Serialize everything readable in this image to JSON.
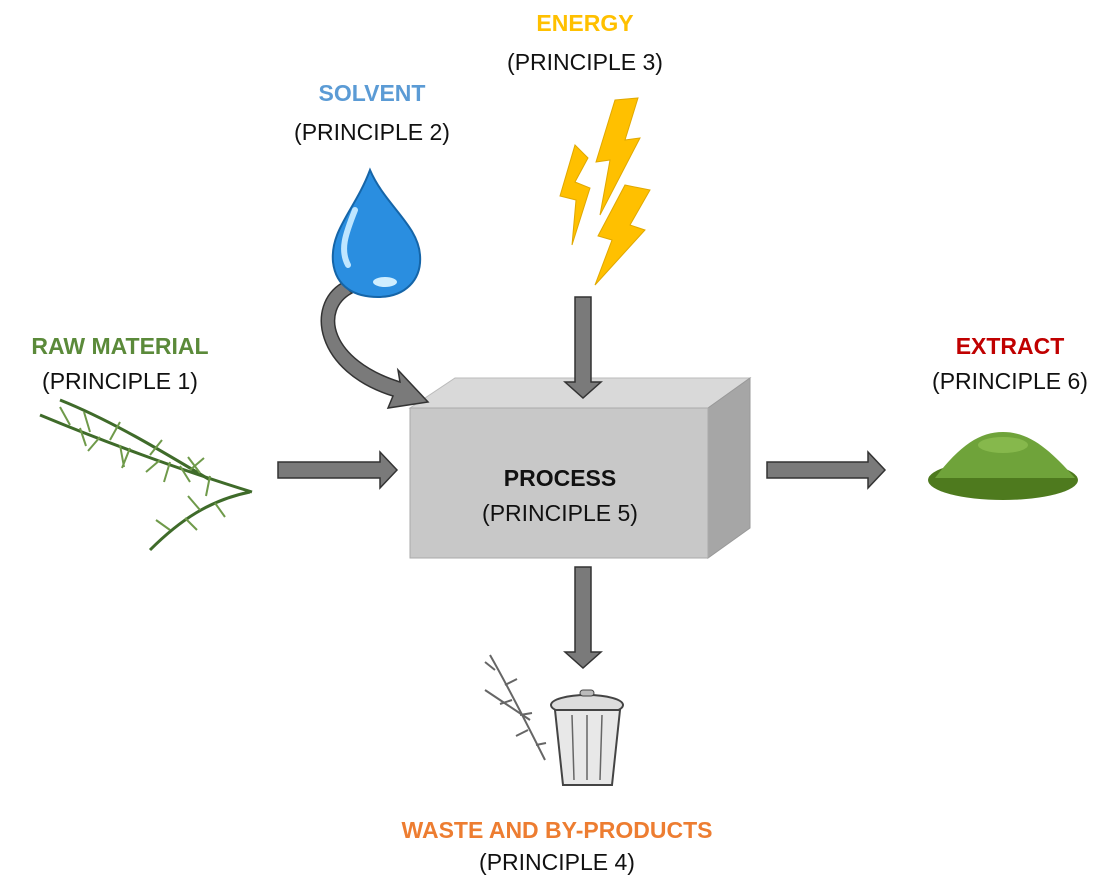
{
  "nodes": [
    {
      "label": "RAW MATERIAL",
      "principle": "(PRINCIPLE 1)"
    },
    {
      "label": "SOLVENT",
      "principle": "(PRINCIPLE 2)"
    },
    {
      "label": "ENERGY",
      "principle": "(PRINCIPLE 3)"
    },
    {
      "label": "WASTE AND BY-PRODUCTS",
      "principle": "(PRINCIPLE 4)"
    },
    {
      "label": "PROCESS",
      "principle": "(PRINCIPLE 5)"
    },
    {
      "label": "EXTRACT",
      "principle": "(PRINCIPLE 6)"
    }
  ]
}
